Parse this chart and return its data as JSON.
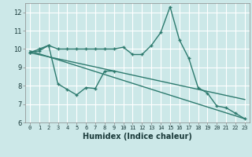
{
  "x": [
    0,
    1,
    2,
    3,
    4,
    5,
    6,
    7,
    8,
    9,
    10,
    11,
    12,
    13,
    14,
    15,
    16,
    17,
    18,
    19,
    20,
    21,
    22,
    23
  ],
  "line1": [
    9.8,
    10.0,
    10.2,
    10.0,
    10.0,
    10.0,
    10.0,
    10.0,
    10.0,
    10.0,
    10.1,
    9.7,
    9.7,
    10.2,
    10.9,
    12.3,
    10.5,
    9.5,
    7.9,
    7.6,
    6.9,
    6.8,
    6.5,
    6.2
  ],
  "line2": [
    9.8,
    9.9,
    10.2,
    8.1,
    7.8,
    7.5,
    7.9,
    7.85,
    8.8,
    8.8,
    null,
    null,
    null,
    null,
    null,
    null,
    null,
    null,
    null,
    null,
    null,
    null,
    null,
    null
  ],
  "line3_x": [
    0,
    23
  ],
  "line3_y": [
    9.9,
    6.2
  ],
  "line4_x": [
    0,
    23
  ],
  "line4_y": [
    9.8,
    7.25
  ],
  "bg_color": "#cce8e8",
  "grid_color": "#ffffff",
  "line_color": "#2d7a6e",
  "xlabel": "Humidex (Indice chaleur)",
  "xlim_min": -0.5,
  "xlim_max": 23.5,
  "ylim_min": 6.0,
  "ylim_max": 12.5,
  "yticks": [
    6,
    7,
    8,
    9,
    10,
    11,
    12
  ],
  "xtick_fontsize": 5.0,
  "ytick_fontsize": 6.0,
  "xlabel_fontsize": 7.0,
  "linewidth": 1.0,
  "markersize": 3.5
}
